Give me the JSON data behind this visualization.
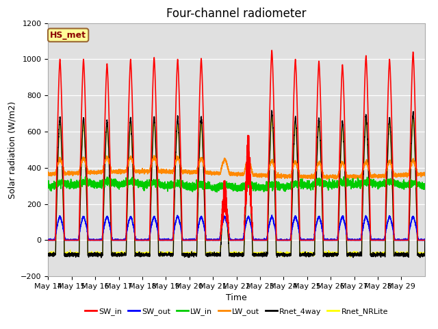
{
  "title": "Four-channel radiometer",
  "xlabel": "Time",
  "ylabel": "Solar radiation (W/m2)",
  "ylim": [
    -200,
    1200
  ],
  "legend_label": "HS_met",
  "series_labels": [
    "SW_in",
    "SW_out",
    "LW_in",
    "LW_out",
    "Rnet_4way",
    "Rnet_NRLite"
  ],
  "series_colors": [
    "#ff0000",
    "#0000ff",
    "#00cc00",
    "#ff8800",
    "#000000",
    "#ffff00"
  ],
  "axes_bg": "#e0e0e0",
  "n_days": 16,
  "tick_labels": [
    "May 14",
    "May 15",
    "May 16",
    "May 17",
    "May 18",
    "May 19",
    "May 20",
    "May 21",
    "May 22",
    "May 23",
    "May 24",
    "May 25",
    "May 26",
    "May 27",
    "May 28",
    "May 29"
  ],
  "title_fontsize": 12,
  "label_fontsize": 9,
  "tick_fontsize": 8
}
